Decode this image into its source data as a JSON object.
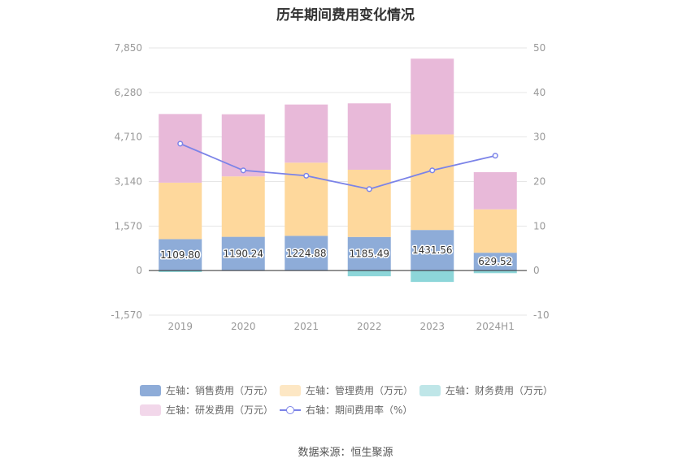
{
  "chart_data": {
    "type": "bar",
    "title": "历年期间费用变化情况",
    "categories": [
      "2019",
      "2020",
      "2021",
      "2022",
      "2023",
      "2024H1"
    ],
    "left_axis": {
      "min": -1570,
      "max": 7850,
      "ticks": [
        "7,850",
        "6,280",
        "4,710",
        "3,140",
        "1,570",
        "0",
        "-1,570"
      ],
      "tick_values": [
        7850,
        6280,
        4710,
        3140,
        1570,
        0,
        -1570
      ]
    },
    "right_axis": {
      "min": -10,
      "max": 50,
      "ticks": [
        "50",
        "40",
        "30",
        "20",
        "10",
        "0",
        "-10"
      ],
      "tick_values": [
        50,
        40,
        30,
        20,
        10,
        0,
        -10
      ]
    },
    "series": [
      {
        "name": "左轴：销售费用（万元）",
        "stack": true,
        "color": "#8eacd8",
        "values": [
          1109.8,
          1190.24,
          1224.88,
          1185.49,
          1431.56,
          629.52
        ],
        "labels": [
          "1109.80",
          "1190.24",
          "1224.88",
          "1185.49",
          "1431.56",
          "629.52"
        ]
      },
      {
        "name": "左轴：管理费用（万元）",
        "stack": true,
        "color": "#fed89c",
        "values": [
          1990,
          2130,
          2580,
          2370,
          3370,
          1530
        ]
      },
      {
        "name": "左轴：财务费用（万元）",
        "stack": true,
        "color": "#8dd6d9",
        "values": [
          -50,
          -10,
          -10,
          -200,
          -400,
          -90
        ]
      },
      {
        "name": "左轴：研发费用（万元）",
        "stack": true,
        "color": "#e8b9d9",
        "values": [
          2420,
          2190,
          2050,
          2340,
          2670,
          1310
        ]
      },
      {
        "name": "右轴：期间费用率（%）",
        "type": "line",
        "axis": "right",
        "color": "#7b83e8",
        "values": [
          28.5,
          22.5,
          21.3,
          18.3,
          22.5,
          25.8
        ]
      }
    ],
    "legend_position": "bottom",
    "grid": true
  },
  "legend": [
    {
      "label": "左轴：销售费用（万元）",
      "color": "#8eacd8",
      "kind": "box"
    },
    {
      "label": "左轴：管理费用（万元）",
      "color": "#fde7c4",
      "kind": "box"
    },
    {
      "label": "左轴：财务费用（万元）",
      "color": "#bfe6e8",
      "kind": "box"
    },
    {
      "label": "左轴：研发费用（万元）",
      "color": "#f2d7ea",
      "kind": "box"
    },
    {
      "label": "右轴：期间费用率（%）",
      "color": "#7b83e8",
      "kind": "line"
    }
  ],
  "source": "数据来源：恒生聚源"
}
